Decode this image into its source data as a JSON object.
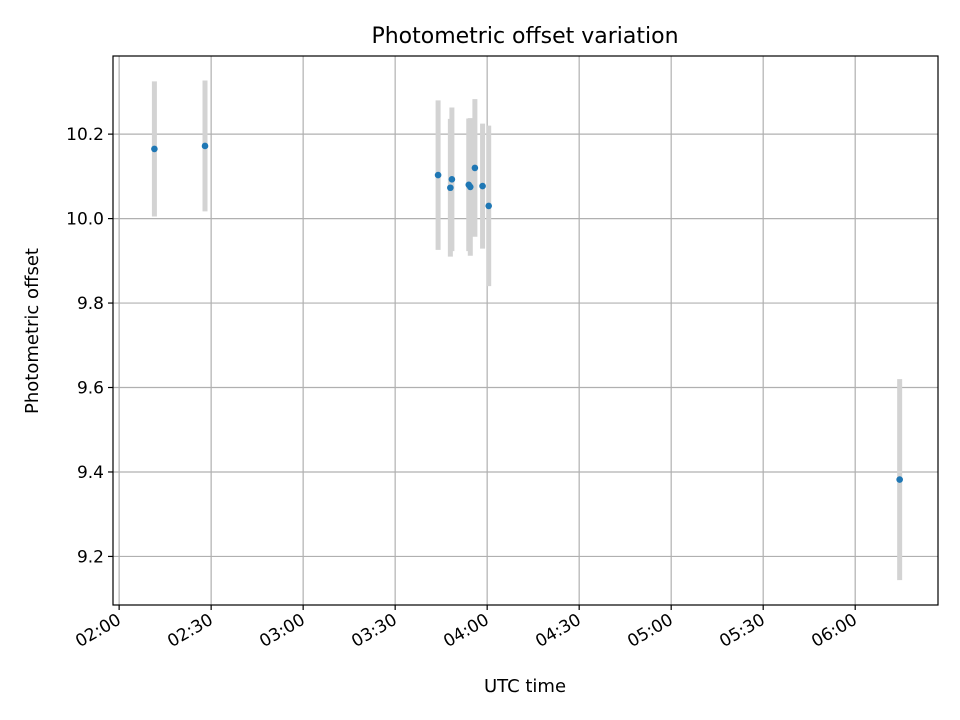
{
  "chart_data": {
    "type": "scatter",
    "title": "Photometric offset variation",
    "xlabel": "UTC time",
    "ylabel": "Photometric offset",
    "x_unit": "HH:MM",
    "xlim": [
      "01:58",
      "06:27"
    ],
    "ylim": [
      9.085,
      10.385
    ],
    "xticks": [
      "02:00",
      "02:30",
      "03:00",
      "03:30",
      "04:00",
      "04:30",
      "05:00",
      "05:30",
      "06:00"
    ],
    "yticks": [
      9.2,
      9.4,
      9.6,
      9.8,
      10.0,
      10.2
    ],
    "ytick_labels": [
      "9.2",
      "9.4",
      "9.6",
      "9.8",
      "10.0",
      "10.2"
    ],
    "grid": true,
    "marker_color": "#1f77b4",
    "errorbar_color": "#d3d3d3",
    "points": [
      {
        "x": "02:11:30",
        "y": 10.165,
        "err": 0.16
      },
      {
        "x": "02:28:00",
        "y": 10.172,
        "err": 0.155
      },
      {
        "x": "03:44:00",
        "y": 10.103,
        "err": 0.177
      },
      {
        "x": "03:48:00",
        "y": 10.073,
        "err": 0.163
      },
      {
        "x": "03:48:30",
        "y": 10.093,
        "err": 0.17
      },
      {
        "x": "03:54:00",
        "y": 10.08,
        "err": 0.157
      },
      {
        "x": "03:54:30",
        "y": 10.075,
        "err": 0.163
      },
      {
        "x": "03:56:00",
        "y": 10.12,
        "err": 0.163
      },
      {
        "x": "03:58:30",
        "y": 10.077,
        "err": 0.148
      },
      {
        "x": "04:00:30",
        "y": 10.03,
        "err": 0.19
      },
      {
        "x": "06:14:30",
        "y": 9.382,
        "err": 0.238
      }
    ]
  }
}
